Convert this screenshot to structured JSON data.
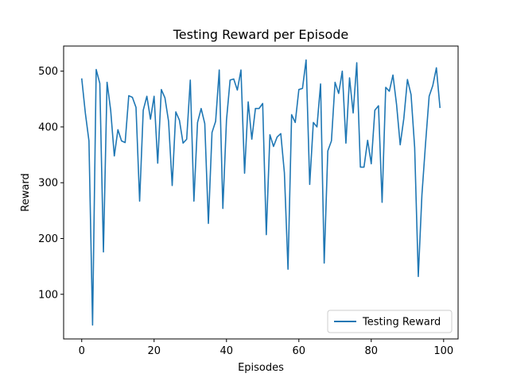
{
  "chart_data": {
    "type": "line",
    "title": "Testing Reward per Episode",
    "xlabel": "Episodes",
    "ylabel": "Reward",
    "xlim": [
      -5,
      104
    ],
    "ylim": [
      20,
      545
    ],
    "xticks": [
      0,
      20,
      40,
      60,
      80,
      100
    ],
    "yticks": [
      100,
      200,
      300,
      400,
      500
    ],
    "grid": false,
    "legend_position": "lower-right",
    "series": [
      {
        "name": "Testing Reward",
        "color": "#1f77b4",
        "x": [
          0,
          1,
          2,
          3,
          4,
          5,
          6,
          7,
          8,
          9,
          10,
          11,
          12,
          13,
          14,
          15,
          16,
          17,
          18,
          19,
          20,
          21,
          22,
          23,
          24,
          25,
          26,
          27,
          28,
          29,
          30,
          31,
          32,
          33,
          34,
          35,
          36,
          37,
          38,
          39,
          40,
          41,
          42,
          43,
          44,
          45,
          46,
          47,
          48,
          49,
          50,
          51,
          52,
          53,
          54,
          55,
          56,
          57,
          58,
          59,
          60,
          61,
          62,
          63,
          64,
          65,
          66,
          67,
          68,
          69,
          70,
          71,
          72,
          73,
          74,
          75,
          76,
          77,
          78,
          79,
          80,
          81,
          82,
          83,
          84,
          85,
          86,
          87,
          88,
          89,
          90,
          91,
          92,
          93,
          94,
          95,
          96,
          97,
          98,
          99
        ],
        "values": [
          487,
          425,
          375,
          45,
          503,
          478,
          176,
          480,
          430,
          348,
          395,
          375,
          372,
          456,
          453,
          435,
          267,
          430,
          455,
          414,
          455,
          335,
          467,
          452,
          410,
          295,
          427,
          412,
          371,
          378,
          484,
          267,
          408,
          433,
          406,
          227,
          390,
          410,
          502,
          254,
          412,
          484,
          486,
          466,
          502,
          317,
          445,
          378,
          433,
          433,
          442,
          207,
          386,
          365,
          382,
          388,
          318,
          145,
          422,
          408,
          467,
          469,
          520,
          297,
          408,
          400,
          477,
          156,
          357,
          375,
          480,
          460,
          500,
          371,
          488,
          425,
          515,
          328,
          328,
          376,
          334,
          430,
          438,
          265,
          471,
          464,
          493,
          440,
          368,
          415,
          485,
          458,
          363,
          132,
          278,
          370,
          455,
          474,
          506,
          434
        ]
      }
    ]
  }
}
